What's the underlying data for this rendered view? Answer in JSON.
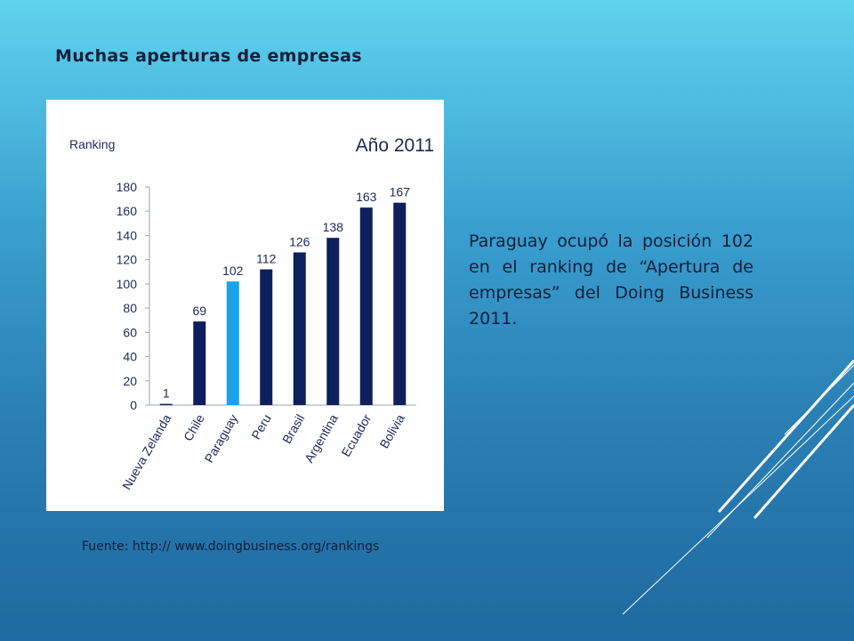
{
  "slide": {
    "title": "Muchas aperturas de empresas",
    "description": "Paraguay ocupó la posición 102 en el ranking de “Apertura de empresas” del Doing Business 2011.",
    "source": "Fuente: http:// www.doingbusiness.org/rankings"
  },
  "chart_data": {
    "type": "bar",
    "title": "Año 2011",
    "ylabel": "Ranking",
    "xlabel": "",
    "ylim": [
      0,
      180
    ],
    "yticks": [
      0,
      20,
      40,
      60,
      80,
      100,
      120,
      140,
      160,
      180
    ],
    "categories": [
      "Nueva Zelanda",
      "Chile",
      "Paraguay",
      "Peru",
      "Brasil",
      "Argentina",
      "Ecuador",
      "Bolivia"
    ],
    "values": [
      1,
      69,
      102,
      112,
      126,
      138,
      163,
      167
    ],
    "highlight": "Paraguay",
    "colors": {
      "bar": "#0d1f5c",
      "highlight": "#1aa3e8",
      "text": "#1c2a5a",
      "axis": "#9aa3b5"
    },
    "grid": false,
    "legend": "none"
  }
}
